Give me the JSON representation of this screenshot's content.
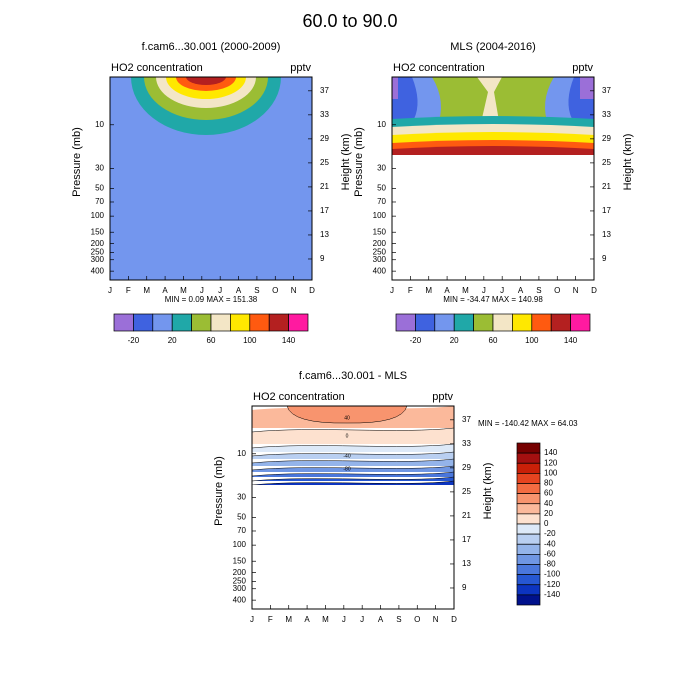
{
  "title": "60.0 to 90.0",
  "chart_data": [
    {
      "type": "contour",
      "title": "f.cam6...30.001 (2000-2009)",
      "left_label": "HO2 concentration",
      "right_label": "pptv",
      "ylabel": "Pressure (mb)",
      "y2label": "Height (km)",
      "categories": [
        "J",
        "F",
        "M",
        "A",
        "M",
        "J",
        "J",
        "A",
        "S",
        "O",
        "N",
        "D"
      ],
      "ylog": true,
      "ylim": [
        500,
        3
      ],
      "yticks": [
        10,
        30,
        50,
        70,
        100,
        150,
        200,
        250,
        300,
        400
      ],
      "y2lim": [
        5.5,
        39.3
      ],
      "y2ticks": [
        9,
        13,
        17,
        21,
        25,
        29,
        33,
        37
      ],
      "stats": "MIN =  0.09  MAX = 151.38",
      "colorbar_lim": [
        -40,
        160
      ],
      "colorbar_ticks": [
        -20,
        20,
        60,
        100,
        140
      ],
      "colors": [
        "#9b6fd8",
        "#3f62e0",
        "#7396ee",
        "#20a8a8",
        "#9bbd34",
        "#f3e6c6",
        "#ffe800",
        "#ff5a10",
        "#b42020",
        "#ff1aa0"
      ]
    },
    {
      "type": "contour",
      "title": "MLS (2004-2016)",
      "left_label": "HO2 concentration",
      "right_label": "pptv",
      "ylabel": "Pressure (mb)",
      "y2label": "Height (km)",
      "categories": [
        "J",
        "F",
        "M",
        "A",
        "M",
        "J",
        "J",
        "A",
        "S",
        "O",
        "N",
        "D"
      ],
      "ylog": true,
      "ylim": [
        500,
        3
      ],
      "yticks": [
        10,
        30,
        50,
        70,
        100,
        150,
        200,
        250,
        300,
        400
      ],
      "y2lim": [
        5.5,
        39.3
      ],
      "y2ticks": [
        9,
        13,
        17,
        21,
        25,
        29,
        33,
        37
      ],
      "stats": "MIN = -34.47  MAX = 140.98",
      "colorbar_lim": [
        -40,
        160
      ],
      "colorbar_ticks": [
        -20,
        20,
        60,
        100,
        140
      ],
      "colors": [
        "#9b6fd8",
        "#3f62e0",
        "#7396ee",
        "#20a8a8",
        "#9bbd34",
        "#f3e6c6",
        "#ffe800",
        "#ff5a10",
        "#b42020",
        "#ff1aa0"
      ]
    },
    {
      "type": "contour",
      "title": "f.cam6...30.001 - MLS",
      "left_label": "HO2 concentration",
      "right_label": "pptv",
      "ylabel": "Pressure (mb)",
      "y2label": "Height (km)",
      "categories": [
        "J",
        "F",
        "M",
        "A",
        "M",
        "J",
        "J",
        "A",
        "S",
        "O",
        "N",
        "D"
      ],
      "ylog": true,
      "ylim": [
        500,
        3
      ],
      "yticks": [
        10,
        30,
        50,
        70,
        100,
        150,
        200,
        250,
        300,
        400
      ],
      "y2lim": [
        5.5,
        39.3
      ],
      "y2ticks": [
        9,
        13,
        17,
        21,
        25,
        29,
        33,
        37
      ],
      "stats": "MIN = -140.42  MAX =  64.03",
      "contour_labels": [
        "40",
        "0",
        "-40",
        "-80"
      ],
      "colorbar_lim": [
        160,
        -160
      ],
      "colorbar_ticks": [
        140,
        120,
        100,
        80,
        60,
        40,
        20,
        0,
        -20,
        -40,
        -60,
        -80,
        -100,
        -120,
        -140
      ],
      "colors": [
        "#760000",
        "#a41010",
        "#c92008",
        "#e64420",
        "#f36c42",
        "#f8946e",
        "#fbb99b",
        "#fde1cf",
        "#dde9f8",
        "#b9cff1",
        "#94b4ea",
        "#6f96e3",
        "#4a77dc",
        "#2657d2",
        "#0c34c0",
        "#00118c"
      ]
    }
  ]
}
